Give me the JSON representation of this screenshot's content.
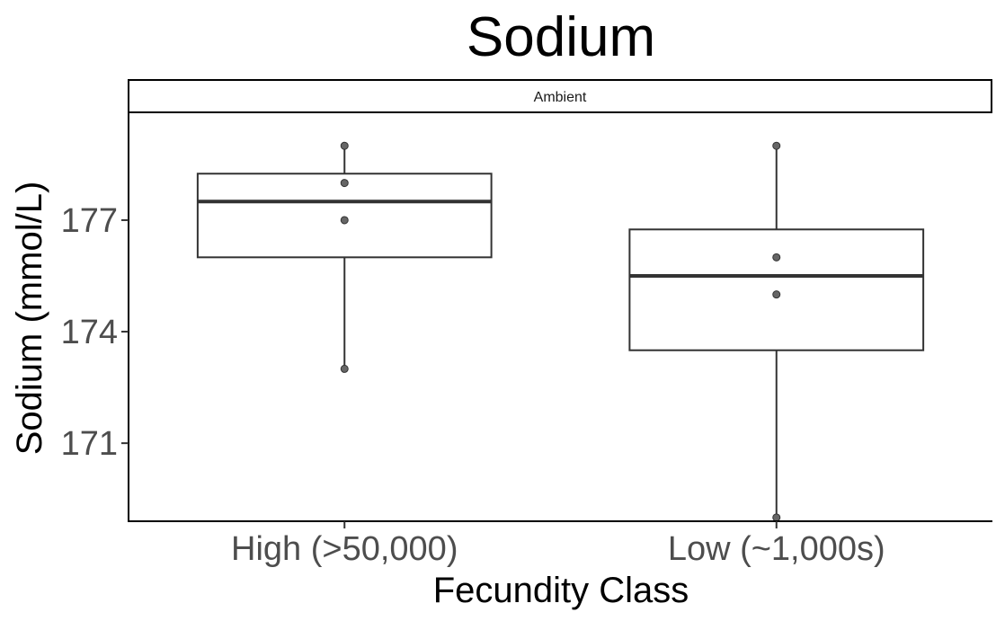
{
  "chart_data": {
    "type": "box",
    "title": "Sodium",
    "facet_label": "Ambient",
    "xlabel": "Fecundity Class",
    "ylabel": "Sodium (mmol/L)",
    "categories": [
      "High (>50,000)",
      "Low (~1,000s)"
    ],
    "ylim": [
      168.9,
      179.9
    ],
    "yticks": [
      171,
      174,
      177
    ],
    "ytick_labels": [
      "171",
      "174",
      "177"
    ],
    "grid": false,
    "boxes": [
      {
        "category": "High (>50,000)",
        "whisker_low": 173,
        "q1": 176,
        "median": 177.5,
        "q3": 178.25,
        "whisker_high": 179,
        "points": [
          179,
          178,
          177,
          173
        ]
      },
      {
        "category": "Low (~1,000s)",
        "whisker_low": 169,
        "q1": 173.5,
        "median": 175.5,
        "q3": 176.75,
        "whisker_high": 179,
        "points": [
          179,
          176,
          175,
          169
        ]
      }
    ],
    "colors": {
      "box_line": "#333333",
      "point": "#666666",
      "axis": "#000000"
    }
  }
}
